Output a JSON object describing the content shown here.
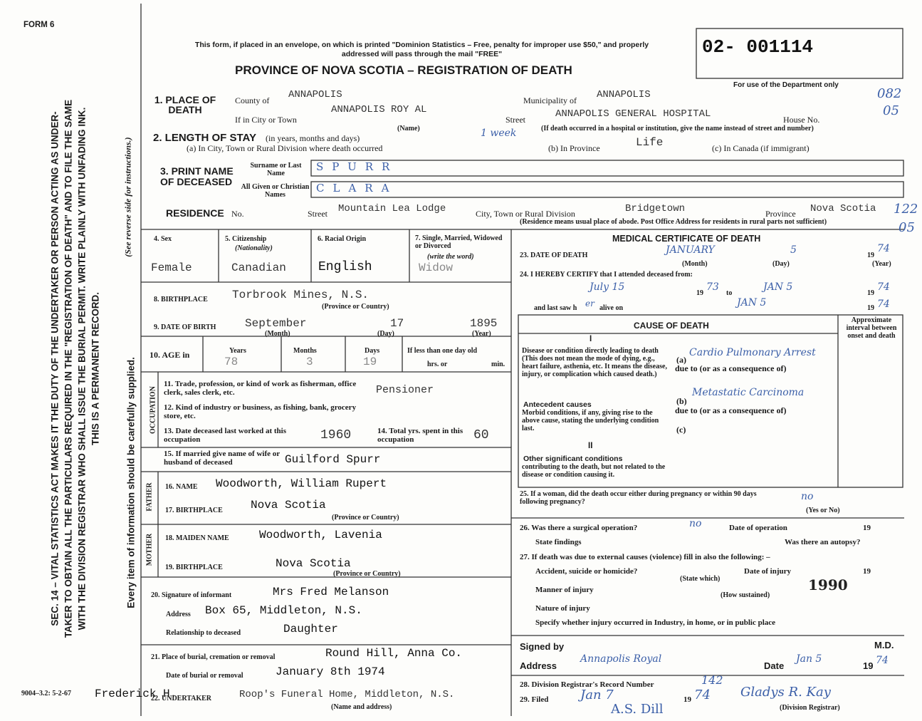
{
  "margin": {
    "form": "FORM 6",
    "statute": "SEC. 14 – VITAL STATISTICS ACT MAKES IT THE DUTY OF THE UNDERTAKER OR PERSON ACTING AS UNDER- TAKER TO OBTAIN ALL THE PARTICULARS REQUIRED IN THE \"REGISTRATION OF DEATH\" AND TO FILE THE SAME WITH THE DIVISION REGISTRAR WHO SHALL ISSUE THE BURIAL PERMIT. WRITE PLAINLY WITH UNFADING INK. THIS IS A PERMANENT RECORD.",
    "every_item": "Every item of information should be carefully supplied.",
    "see_reverse": "(See reverse side for instructions.)",
    "print_code": "9004–3.2: 5-2-67"
  },
  "header": {
    "notice": "This form, if placed in an envelope, on which is printed \"Dominion Statistics – Free, penalty for improper use $50,\" and properly addressed will pass through the mail \"FREE\"",
    "title": "PROVINCE OF NOVA SCOTIA – REGISTRATION OF DEATH",
    "number": "02- 001114",
    "dept": "For use of the Department only",
    "codes": [
      "082",
      "05",
      "122",
      "05"
    ]
  },
  "place_of_death": {
    "label": "1. PLACE OF DEATH",
    "county_label": "County of",
    "county": "ANNAPOLIS",
    "municipality_label": "Municipality of",
    "municipality": "ANNAPOLIS",
    "city_label": "If in City or Town",
    "city": "ANNAPOLIS ROY AL",
    "name_note": "(Name)",
    "street_label": "Street",
    "street": "ANNAPOLIS GENERAL HOSPITAL",
    "house_label": "House No.",
    "hospital_note": "(If death occurred in a hospital or institution, give the name instead of street and number)"
  },
  "length_of_stay": {
    "label": "2. LENGTH OF STAY",
    "units": "(in years, months and days)",
    "a_label": "(a) In City, Town or Rural Division where death occurred",
    "a": "1 week",
    "b_label": "(b) In Province",
    "b": "Life",
    "c_label": "(c) In Canada (if immigrant)"
  },
  "name": {
    "label": "3. PRINT NAME OF DECEASED",
    "surname_label": "Surname or Last Name",
    "surname": "SPURR",
    "given_label": "All Given or Christian Names",
    "given": "CLARA"
  },
  "residence": {
    "label": "RESIDENCE",
    "no_label": "No.",
    "street_label": "Street",
    "street": "Mountain Lea Lodge",
    "city_label": "City, Town or Rural Division",
    "city": "Bridgetown",
    "province_label": "Province",
    "province": "Nova Scotia",
    "note": "(Residence means usual place of abode. Post Office Address for residents in rural parts not sufficient)"
  },
  "personal": {
    "sex_label": "4. Sex",
    "sex": "Female",
    "citizenship_label": "5. Citizenship",
    "nationality": "(Nationality)",
    "citizenship": "Canadian",
    "racial_label": "6. Racial Origin",
    "racial": "English",
    "marital_label": "7. Single, Married, Widowed or Divorced",
    "write_word": "(write the word)",
    "marital": "Widow",
    "birthplace_label": "8. BIRTHPLACE",
    "birthplace": "Torbrook Mines, N.S.",
    "province_note": "(Province or Country)",
    "dob_label": "9. DATE OF BIRTH",
    "dob_month": "September",
    "dob_day": "17",
    "dob_year": "1895",
    "month_note": "(Month)",
    "day_note": "(Day)",
    "year_note": "(Year)",
    "age_label": "10. AGE in",
    "years_label": "Years",
    "years": "78",
    "months_label": "Months",
    "months": "3",
    "days_label": "Days",
    "days": "19",
    "less_label": "If less than one day old",
    "hrs_label": "hrs. or",
    "min_label": "min."
  },
  "occupation": {
    "label": "OCCUPATION",
    "trade_label": "11. Trade, profession, or kind of work as fisherman, office clerk, sales clerk, etc.",
    "trade": "Pensioner",
    "industry_label": "12. Kind of industry or business, as fishing, bank, grocery store, etc.",
    "last_label": "13. Date deceased last worked at this occupation",
    "last": "1960",
    "total_label": "14. Total yrs. spent in this occupation",
    "total": "60"
  },
  "spouse": {
    "label": "15. If married give name of wife or husband of deceased",
    "name": "Guilford Spurr"
  },
  "father": {
    "label": "FATHER",
    "name_label": "16. NAME",
    "name": "Woodworth, William Rupert",
    "birthplace_label": "17. BIRTHPLACE",
    "birthplace": "Nova Scotia",
    "note": "(Province or Country)"
  },
  "mother": {
    "label": "MOTHER",
    "name_label": "18. MAIDEN NAME",
    "name": "Woodworth, Lavenia",
    "birthplace_label": "19. BIRTHPLACE",
    "birthplace": "Nova Scotia",
    "note": "(Province or Country)"
  },
  "informant": {
    "label": "20. Signature of informant",
    "name": "Mrs Fred Melanson",
    "address_label": "Address",
    "address": "Box 65, Middleton, N.S.",
    "relationship_label": "Relationship to deceased",
    "relationship": "Daughter"
  },
  "burial": {
    "place_label": "21. Place of burial, cremation or removal",
    "place": "Round Hill, Anna Co.",
    "date_label": "Date of burial or removal",
    "date": "January 8th 1974"
  },
  "undertaker": {
    "label": "22. UNDERTAKER",
    "typed": "Frederick H.",
    "name": "Roop's Funeral Home, Middleton, N.S.",
    "note": "(Name and address)"
  },
  "medical": {
    "title": "MEDICAL CERTIFICATE OF DEATH",
    "death_label": "23. DATE OF DEATH",
    "death_month": "JANUARY",
    "death_day": "5",
    "century": "19",
    "death_year": "74",
    "month_note": "(Month)",
    "day_note": "(Day)",
    "year_note": "(Year)",
    "certify_label": "24. I HEREBY CERTIFY that I attended deceased from:",
    "from_date": "July 15",
    "from_year": "73",
    "to_label": "to",
    "to_date": "JAN 5",
    "to_year": "74",
    "last_saw_label": "and last saw h",
    "last_saw_pronoun": "er",
    "alive_label": "alive on",
    "last_saw_date": "JAN 5",
    "last_saw_year": "74",
    "cause_title": "CAUSE OF DEATH",
    "interval_label": "Approximate interval between onset and death",
    "part1": "I",
    "direct_label": "Disease or condition directly leading to death (This does not mean the mode of dying, e.g., heart failure, asthenia, etc. It means the disease, injury, or complication which caused death.)",
    "a_label": "(a)",
    "a": "Cardio Pulmonary Arrest",
    "due_to": "due to (or as a consequence of)",
    "antecedent_label": "Antecedent causes",
    "antecedent_text": "Morbid conditions, if any, giving rise to the above cause, stating the underlying condition last.",
    "b_label": "(b)",
    "b": "Metastatic Carcinoma",
    "c_label": "(c)",
    "part2": "II",
    "other_label": "Other significant conditions",
    "other_text": "contributing to the death, but not related to the disease or condition causing it.",
    "woman_label": "25. If a woman, did the death occur either during pregnancy or within 90 days following pregnancy?",
    "woman": "no",
    "yes_no": "(Yes or No)",
    "surgery_label": "26. Was there a surgical operation?",
    "surgery": "no",
    "operation_label": "Date of operation",
    "findings_label": "State findings",
    "autopsy_label": "Was there an autopsy?",
    "external_label": "27. If death was due to external causes (violence) fill in also the following: –",
    "accident_label": "Accident, suicide or homicide?",
    "injury_date_label": "Date of injury",
    "state_which": "(State which)",
    "manner_label": "Manner of injury",
    "manner": "1990",
    "how_sustained": "(How sustained)",
    "nature_label": "Nature of injury",
    "specify_label": "Specify whether injury occurred in Industry, in home, or in public place",
    "signed_label": "Signed by",
    "md": "M.D.",
    "address_label": "Address",
    "address": "Annapolis Royal",
    "date_label": "Date",
    "date": "Jan 5",
    "date_year": "74"
  },
  "registration": {
    "record_label": "28. Division Registrar's Record Number",
    "record": "142",
    "filed_label": "29. Filed",
    "filed_date": "Jan 7",
    "filed_year": "74",
    "registrar": "Gladys R. Kay",
    "registrar_note": "(Division Registrar)",
    "countersign": "A.S. Dill"
  }
}
